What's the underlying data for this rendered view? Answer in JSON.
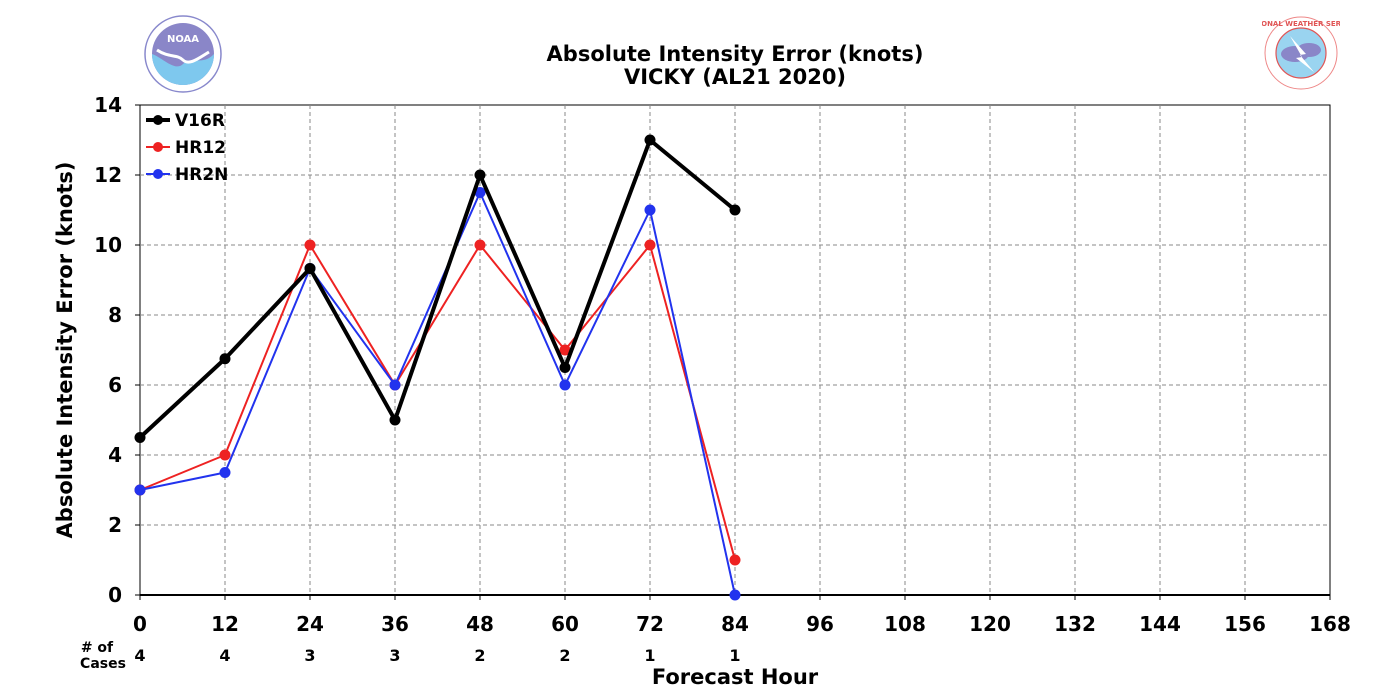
{
  "title_line1": "Absolute Intensity Error (knots)",
  "title_line2": "VICKY (AL21 2020)",
  "logos": {
    "left": {
      "name": "NOAA",
      "text": "NOAA"
    },
    "right": {
      "name": "National Weather Service",
      "text": "NATIONAL WEATHER SERVICE"
    }
  },
  "cases_label_line1": "# of",
  "cases_label_line2": "Cases",
  "chart_data": {
    "type": "line",
    "xlabel": "Forecast Hour",
    "ylabel": "Absolute Intensity Error (knots)",
    "xlim": [
      0,
      168
    ],
    "ylim": [
      0,
      14
    ],
    "x_ticks": [
      0,
      12,
      24,
      36,
      48,
      60,
      72,
      84,
      96,
      108,
      120,
      132,
      144,
      156,
      168
    ],
    "y_ticks": [
      0,
      2,
      4,
      6,
      8,
      10,
      12,
      14
    ],
    "grid": true,
    "legend_position": "top-left",
    "num_cases": [
      {
        "x": 0,
        "n": 4
      },
      {
        "x": 12,
        "n": 4
      },
      {
        "x": 24,
        "n": 3
      },
      {
        "x": 36,
        "n": 3
      },
      {
        "x": 48,
        "n": 2
      },
      {
        "x": 60,
        "n": 2
      },
      {
        "x": 72,
        "n": 1
      },
      {
        "x": 84,
        "n": 1
      }
    ],
    "series": [
      {
        "name": "V16R",
        "color": "#000000",
        "line_width": 4,
        "x": [
          0,
          12,
          24,
          36,
          48,
          60,
          72,
          84
        ],
        "values": [
          4.5,
          6.75,
          9.33,
          5.0,
          12.0,
          6.5,
          13.0,
          11.0
        ]
      },
      {
        "name": "HR12",
        "color": "#ee2222",
        "line_width": 2,
        "x": [
          0,
          12,
          24,
          36,
          48,
          60,
          72,
          84
        ],
        "values": [
          3.0,
          4.0,
          10.0,
          6.0,
          10.0,
          7.0,
          10.0,
          1.0
        ]
      },
      {
        "name": "HR2N",
        "color": "#2233ee",
        "line_width": 2,
        "x": [
          0,
          12,
          24,
          36,
          48,
          60,
          72,
          84
        ],
        "values": [
          3.0,
          3.5,
          9.33,
          6.0,
          11.5,
          6.0,
          11.0,
          0.0
        ]
      }
    ]
  }
}
